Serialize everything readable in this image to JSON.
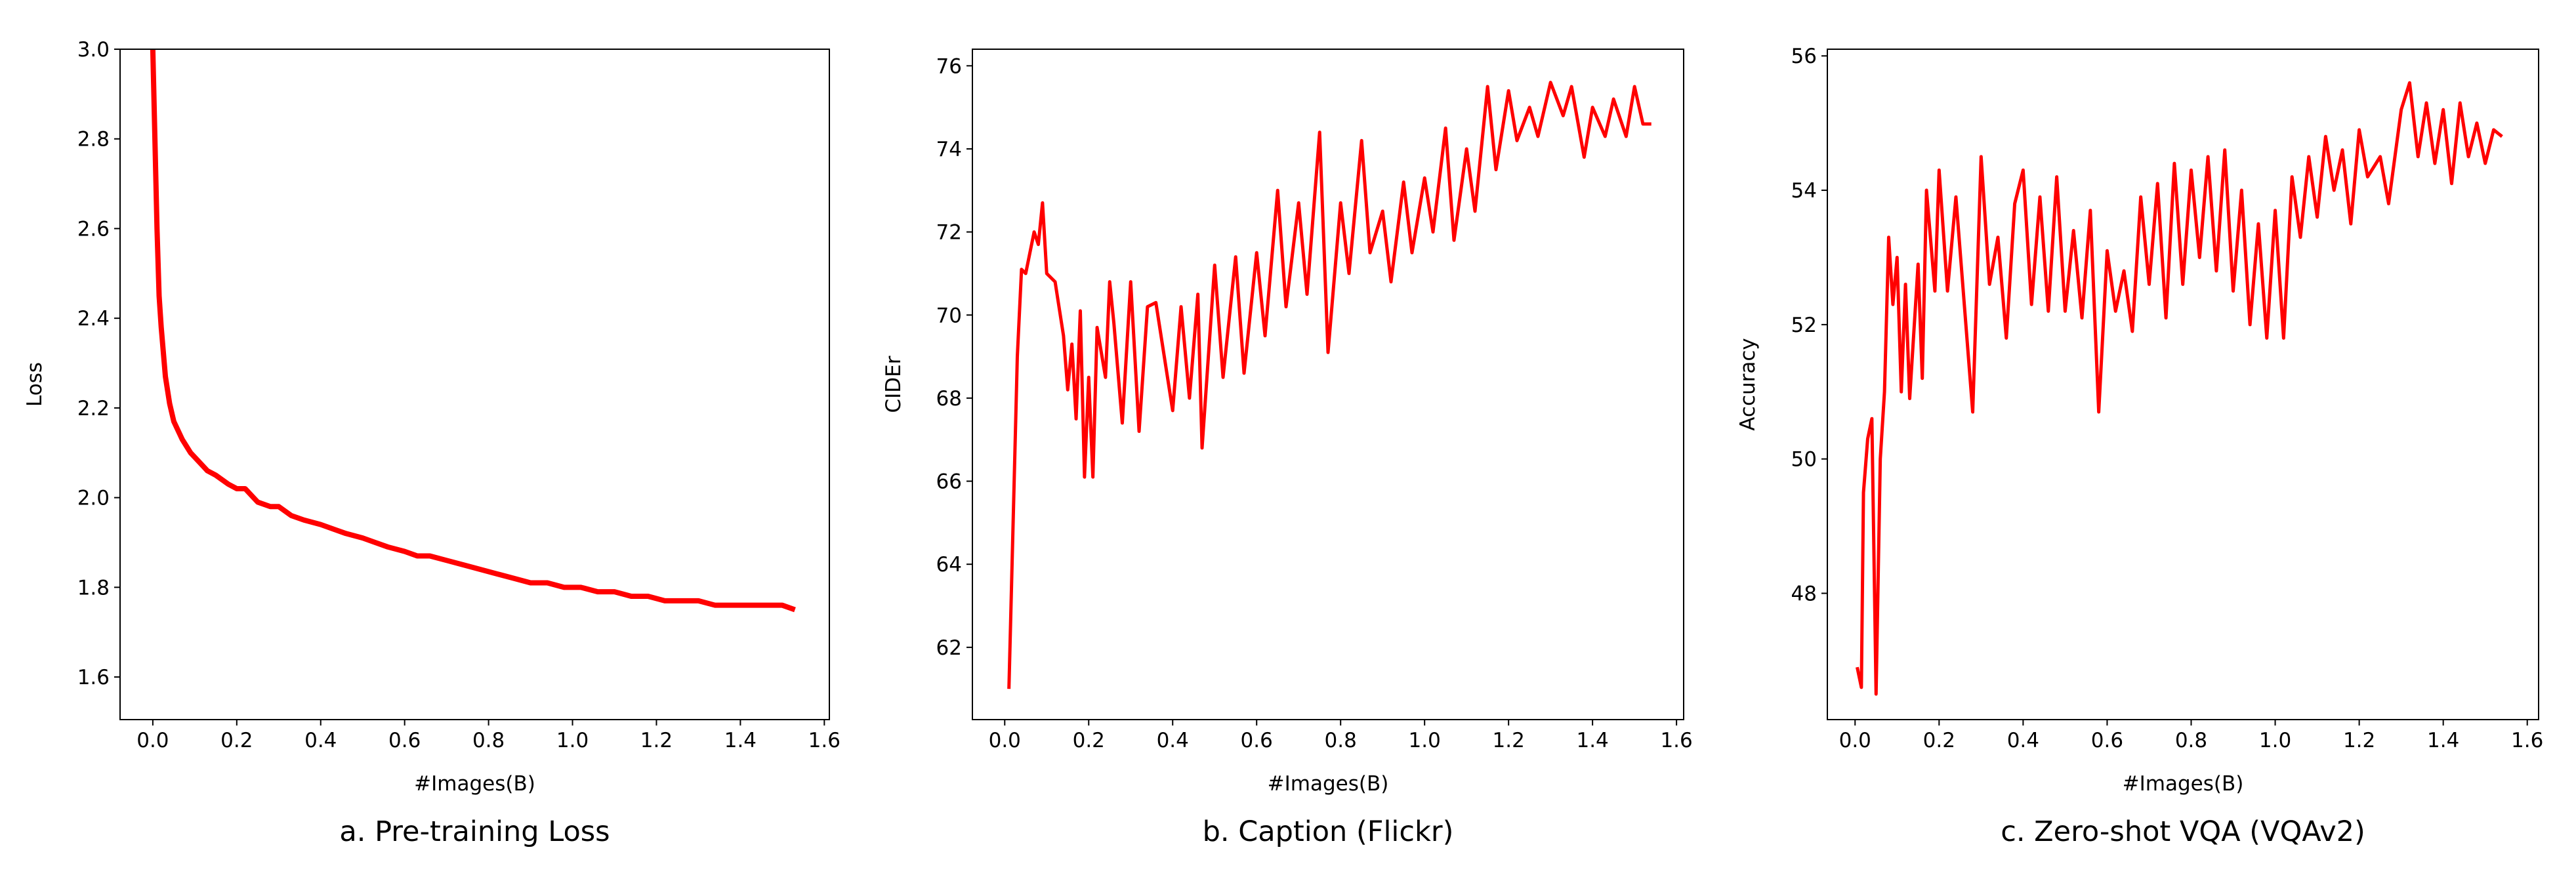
{
  "chart_data": [
    {
      "type": "line",
      "caption": "a. Pre-training Loss",
      "xlabel": "#Images(B)",
      "ylabel": "Loss",
      "color": "#ff0000",
      "x": [
        0.0,
        0.005,
        0.01,
        0.015,
        0.02,
        0.03,
        0.04,
        0.05,
        0.07,
        0.09,
        0.11,
        0.13,
        0.15,
        0.18,
        0.2,
        0.22,
        0.25,
        0.28,
        0.3,
        0.33,
        0.36,
        0.4,
        0.43,
        0.46,
        0.5,
        0.53,
        0.56,
        0.6,
        0.63,
        0.66,
        0.7,
        0.74,
        0.78,
        0.82,
        0.86,
        0.9,
        0.94,
        0.98,
        1.02,
        1.06,
        1.1,
        1.14,
        1.18,
        1.22,
        1.26,
        1.3,
        1.34,
        1.38,
        1.42,
        1.46,
        1.5,
        1.53
      ],
      "values": [
        3.0,
        2.8,
        2.6,
        2.45,
        2.38,
        2.27,
        2.21,
        2.17,
        2.13,
        2.1,
        2.08,
        2.06,
        2.05,
        2.03,
        2.02,
        2.02,
        1.99,
        1.98,
        1.98,
        1.96,
        1.95,
        1.94,
        1.93,
        1.92,
        1.91,
        1.9,
        1.89,
        1.88,
        1.87,
        1.87,
        1.86,
        1.85,
        1.84,
        1.83,
        1.82,
        1.81,
        1.81,
        1.8,
        1.8,
        1.79,
        1.79,
        1.78,
        1.78,
        1.77,
        1.77,
        1.77,
        1.76,
        1.76,
        1.76,
        1.76,
        1.76,
        1.75
      ],
      "xlim": [
        -0.078,
        1.612
      ],
      "ylim": [
        1.505,
        3.0
      ],
      "xticks": [
        {
          "value": 0,
          "label": "0.0"
        },
        0.2,
        0.4,
        0.6,
        0.8,
        {
          "value": 1,
          "label": "1.0"
        },
        1.2,
        1.4,
        1.6
      ],
      "yticks": [
        1.6,
        1.8,
        {
          "value": 2,
          "label": "2.0"
        },
        2.2,
        2.4,
        2.6,
        2.8,
        {
          "value": 3,
          "label": "3.0"
        }
      ]
    },
    {
      "type": "line",
      "caption": "b. Caption (Flickr)",
      "xlabel": "#Images(B)",
      "ylabel": "CIDEr",
      "color": "#ff0000",
      "x": [
        0.01,
        0.02,
        0.03,
        0.04,
        0.05,
        0.06,
        0.07,
        0.08,
        0.09,
        0.1,
        0.12,
        0.14,
        0.15,
        0.16,
        0.17,
        0.18,
        0.19,
        0.2,
        0.21,
        0.22,
        0.24,
        0.25,
        0.26,
        0.28,
        0.3,
        0.32,
        0.34,
        0.36,
        0.38,
        0.4,
        0.42,
        0.44,
        0.46,
        0.47,
        0.5,
        0.52,
        0.55,
        0.57,
        0.6,
        0.62,
        0.65,
        0.67,
        0.7,
        0.72,
        0.75,
        0.77,
        0.8,
        0.82,
        0.85,
        0.87,
        0.9,
        0.92,
        0.95,
        0.97,
        1.0,
        1.02,
        1.05,
        1.07,
        1.1,
        1.12,
        1.15,
        1.17,
        1.2,
        1.22,
        1.25,
        1.27,
        1.3,
        1.33,
        1.35,
        1.38,
        1.4,
        1.43,
        1.45,
        1.48,
        1.5,
        1.52,
        1.54
      ],
      "values": [
        61,
        65,
        69,
        71.1,
        71,
        71.5,
        72,
        71.7,
        72.7,
        71,
        70.8,
        69.5,
        68.2,
        69.3,
        67.5,
        70.1,
        66.1,
        68.5,
        66.1,
        69.7,
        68.5,
        70.8,
        69.8,
        67.4,
        70.8,
        67.2,
        70.2,
        70.3,
        69,
        67.7,
        70.2,
        68,
        70.5,
        66.8,
        71.2,
        68.5,
        71.4,
        68.6,
        71.5,
        69.5,
        73,
        70.2,
        72.7,
        70.5,
        74.4,
        69.1,
        72.7,
        71,
        74.2,
        71.5,
        72.5,
        70.8,
        73.2,
        71.5,
        73.3,
        72,
        74.5,
        71.8,
        74,
        72.5,
        75.5,
        73.5,
        75.4,
        74.2,
        75,
        74.3,
        75.6,
        74.8,
        75.5,
        73.8,
        75,
        74.3,
        75.2,
        74.3,
        75.5,
        74.6,
        74.6
      ],
      "xlim": [
        -0.077,
        1.617
      ],
      "ylim": [
        60.26,
        76.4
      ],
      "xticks": [
        {
          "value": 0,
          "label": "0.0"
        },
        0.2,
        0.4,
        0.6,
        0.8,
        {
          "value": 1,
          "label": "1.0"
        },
        1.2,
        1.4,
        1.6
      ],
      "yticks": [
        62,
        64,
        66,
        68,
        70,
        72,
        74,
        76
      ]
    },
    {
      "type": "line",
      "caption": "c. Zero-shot VQA (VQAv2)",
      "xlabel": "#Images(B)",
      "ylabel": "Accuracy",
      "color": "#ff0000",
      "x": [
        0.005,
        0.015,
        0.02,
        0.03,
        0.04,
        0.05,
        0.06,
        0.07,
        0.08,
        0.09,
        0.1,
        0.11,
        0.12,
        0.13,
        0.15,
        0.16,
        0.17,
        0.19,
        0.2,
        0.22,
        0.24,
        0.26,
        0.28,
        0.3,
        0.32,
        0.34,
        0.36,
        0.38,
        0.4,
        0.42,
        0.44,
        0.46,
        0.48,
        0.5,
        0.52,
        0.54,
        0.56,
        0.58,
        0.6,
        0.62,
        0.64,
        0.66,
        0.68,
        0.7,
        0.72,
        0.74,
        0.76,
        0.78,
        0.8,
        0.82,
        0.84,
        0.86,
        0.88,
        0.9,
        0.92,
        0.94,
        0.96,
        0.98,
        1.0,
        1.02,
        1.04,
        1.06,
        1.08,
        1.1,
        1.12,
        1.14,
        1.16,
        1.18,
        1.2,
        1.22,
        1.25,
        1.27,
        1.3,
        1.32,
        1.34,
        1.36,
        1.38,
        1.4,
        1.42,
        1.44,
        1.46,
        1.48,
        1.5,
        1.52,
        1.54
      ],
      "values": [
        46.9,
        46.6,
        49.5,
        50.3,
        50.6,
        46.5,
        50,
        51,
        53.3,
        52.3,
        53,
        51,
        52.6,
        50.9,
        52.9,
        51.2,
        54,
        52.5,
        54.3,
        52.5,
        53.9,
        52.3,
        50.7,
        54.5,
        52.6,
        53.3,
        51.8,
        53.8,
        54.3,
        52.3,
        53.9,
        52.2,
        54.2,
        52.2,
        53.4,
        52.1,
        53.7,
        50.7,
        53.1,
        52.2,
        52.8,
        51.9,
        53.9,
        52.6,
        54.1,
        52.1,
        54.4,
        52.6,
        54.3,
        53,
        54.5,
        52.8,
        54.6,
        52.5,
        54,
        52,
        53.5,
        51.8,
        53.7,
        51.8,
        54.2,
        53.3,
        54.5,
        53.6,
        54.8,
        54,
        54.6,
        53.5,
        54.9,
        54.2,
        54.5,
        53.8,
        55.2,
        55.6,
        54.5,
        55.3,
        54.4,
        55.2,
        54.1,
        55.3,
        54.5,
        55,
        54.4,
        54.9,
        54.8
      ],
      "xlim": [
        -0.066,
        1.627
      ],
      "ylim": [
        46.12,
        56.1
      ],
      "xticks": [
        {
          "value": 0,
          "label": "0.0"
        },
        0.2,
        0.4,
        0.6,
        0.8,
        {
          "value": 1,
          "label": "1.0"
        },
        1.2,
        1.4,
        1.6
      ],
      "yticks": [
        48,
        50,
        52,
        54,
        56
      ]
    }
  ]
}
